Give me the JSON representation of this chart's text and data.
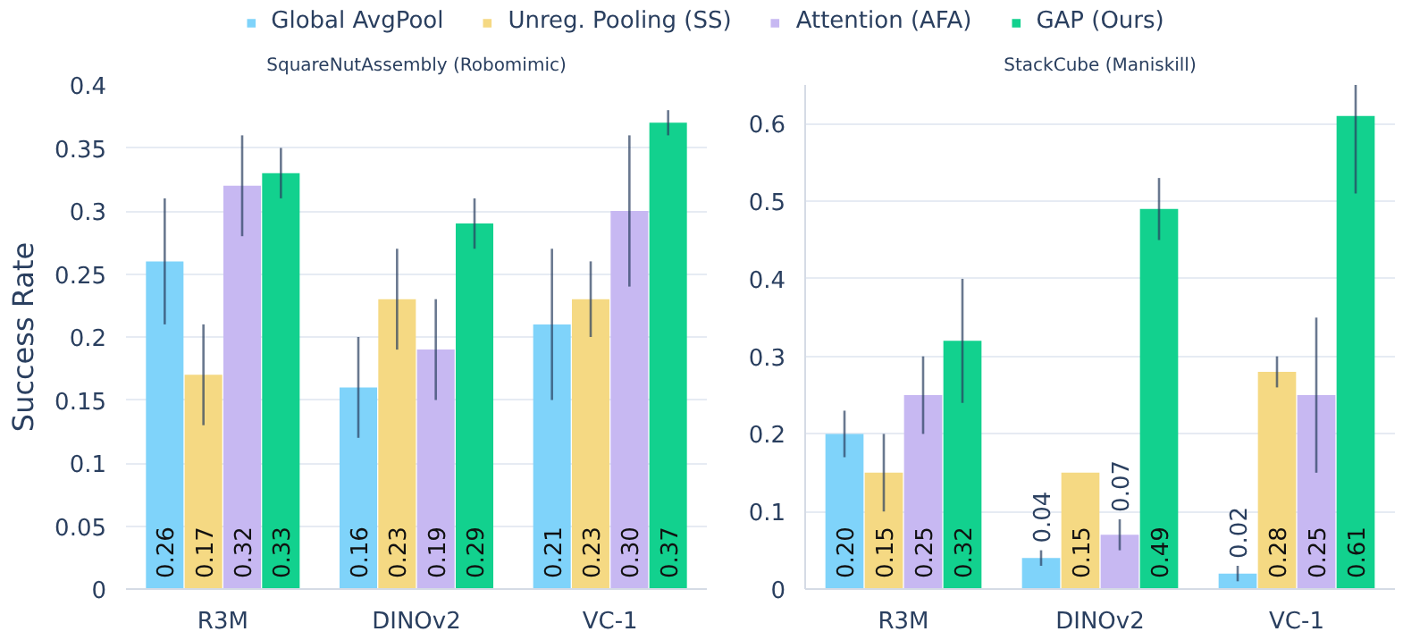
{
  "chart_data": [
    {
      "type": "bar",
      "title": "SquareNutAssembly (Robomimic)",
      "ylabel": "Success Rate",
      "categories": [
        "R3M",
        "DINOv2",
        "VC-1"
      ],
      "ylim": [
        0,
        0.4
      ],
      "yticks": [
        0,
        0.05,
        0.1,
        0.15,
        0.2,
        0.25,
        0.3,
        0.35,
        0.4
      ],
      "grid": "y",
      "legend": "top",
      "series": [
        {
          "name": "Global AvgPool",
          "color": "#7fd3fa",
          "values": [
            0.26,
            0.16,
            0.21
          ],
          "errors": [
            0.05,
            0.04,
            0.06
          ],
          "value_labels": [
            "0.26",
            "0.16",
            "0.21"
          ]
        },
        {
          "name": "Unreg. Pooling (SS)",
          "color": "#f5d983",
          "values": [
            0.17,
            0.23,
            0.23
          ],
          "errors": [
            0.04,
            0.04,
            0.03
          ],
          "value_labels": [
            "0.17",
            "0.23",
            "0.23"
          ]
        },
        {
          "name": "Attention (AFA)",
          "color": "#c7b8f2",
          "values": [
            0.32,
            0.19,
            0.3
          ],
          "errors": [
            0.04,
            0.04,
            0.06
          ],
          "value_labels": [
            "0.32",
            "0.19",
            "0.30"
          ]
        },
        {
          "name": "GAP (Ours)",
          "color": "#12d18e",
          "values": [
            0.33,
            0.29,
            0.37
          ],
          "errors": [
            0.02,
            0.02,
            0.01
          ],
          "value_labels": [
            "0.33",
            "0.29",
            "0.37"
          ]
        }
      ]
    },
    {
      "type": "bar",
      "title": "StackCube (Maniskill)",
      "categories": [
        "R3M",
        "DINOv2",
        "VC-1"
      ],
      "ylim": [
        0,
        0.65
      ],
      "yticks": [
        0,
        0.1,
        0.2,
        0.3,
        0.4,
        0.5,
        0.6
      ],
      "grid": "y",
      "series": [
        {
          "color": "#7fd3fa",
          "values": [
            0.2,
            0.04,
            0.02
          ],
          "errors": [
            0.03,
            0.01,
            0.01
          ],
          "value_labels": [
            "0.20",
            "0.04",
            "0.02"
          ]
        },
        {
          "color": "#f5d983",
          "values": [
            0.15,
            0.15,
            0.28
          ],
          "errors": [
            0.05,
            null,
            0.02
          ],
          "value_labels": [
            "0.15",
            "0.15",
            "0.28"
          ]
        },
        {
          "color": "#c7b8f2",
          "values": [
            0.25,
            0.07,
            0.25
          ],
          "errors": [
            0.05,
            0.02,
            0.1
          ],
          "value_labels": [
            "0.25",
            "0.07",
            "0.25"
          ]
        },
        {
          "color": "#12d18e",
          "values": [
            0.32,
            0.49,
            0.61
          ],
          "errors": [
            0.08,
            0.04,
            [
              0.51,
              0.65
            ]
          ],
          "value_labels": [
            "0.32",
            "0.49",
            "0.61"
          ]
        }
      ]
    }
  ]
}
